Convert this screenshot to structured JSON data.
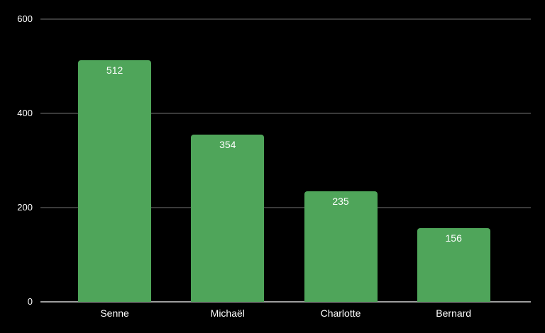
{
  "chart_data": {
    "type": "bar",
    "categories": [
      "Senne",
      "Michaël",
      "Charlotte",
      "Bernard"
    ],
    "values": [
      512,
      354,
      235,
      156
    ],
    "data_labels_visible": true,
    "title": "",
    "xlabel": "",
    "ylabel": "",
    "ylim": [
      0,
      600
    ],
    "yticks": [
      0,
      200,
      400,
      600
    ],
    "grid": true,
    "legend": false,
    "colors": {
      "background": "#000000",
      "bar": "#4fa55a",
      "gridline": "#3a3a3a",
      "axis_line": "#9e9e9e",
      "tick_label_text": "#ffffff",
      "bar_label_text": "#ffffff",
      "category_label_text": "#ffffff"
    }
  }
}
